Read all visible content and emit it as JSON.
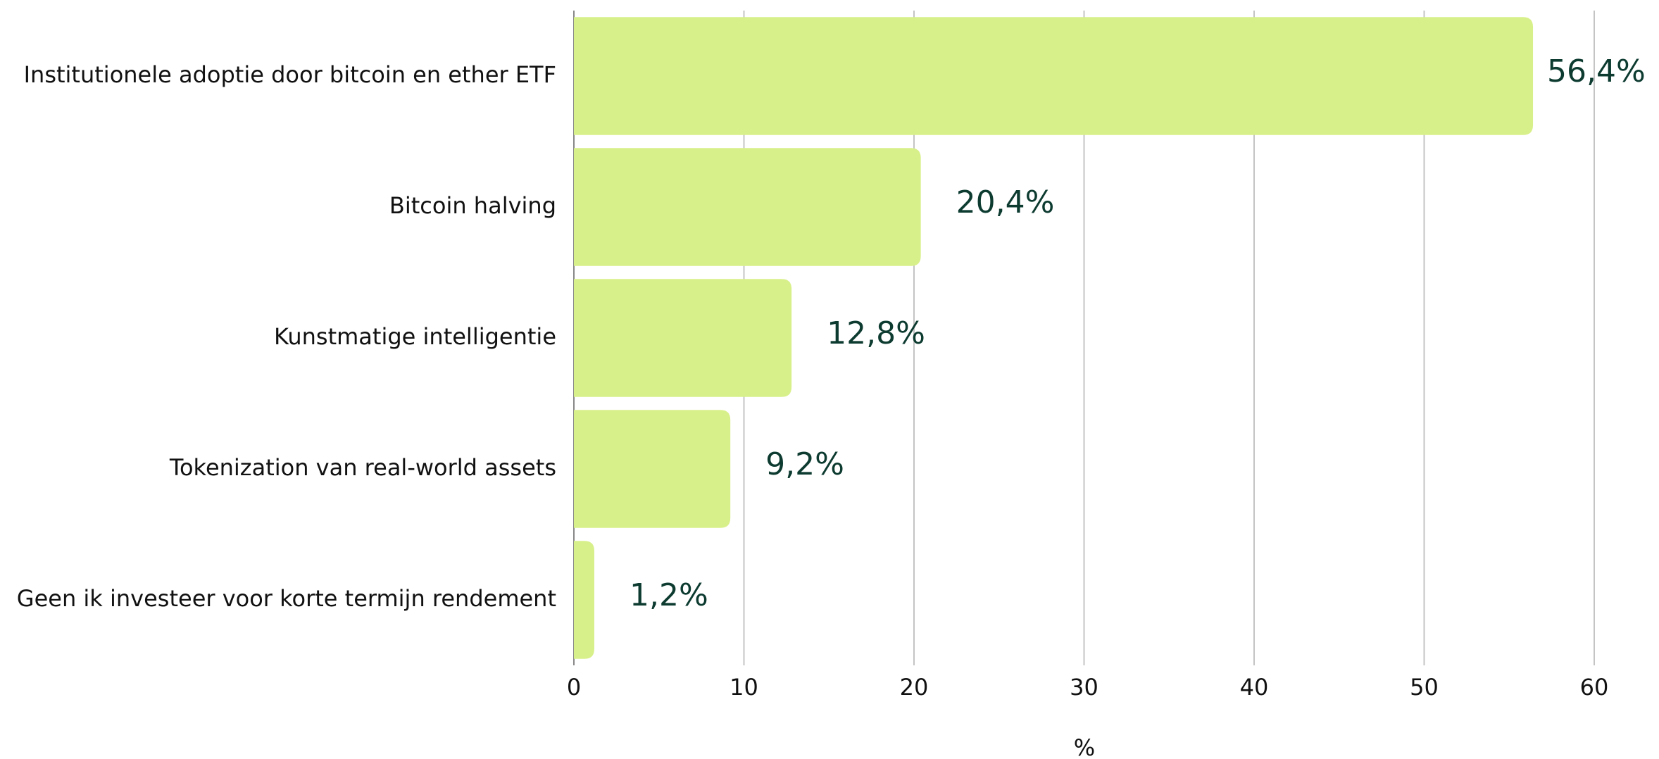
{
  "chart_data": {
    "type": "hbar",
    "categories": [
      "Institutionele adoptie door bitcoin en ether ETF",
      "Bitcoin halving",
      "Kunstmatige intelligentie",
      "Tokenization van real-world assets",
      "Geen ik investeer voor korte termijn rendement"
    ],
    "values": [
      56.4,
      20.4,
      12.8,
      9.2,
      1.2
    ],
    "value_labels": [
      "56,4%",
      "20,4%",
      "12,8%",
      "9,2%",
      "1,2%"
    ],
    "color": "#d8f08a",
    "xlim": [
      0,
      60
    ],
    "xticks": [
      0,
      10,
      20,
      30,
      40,
      50,
      60
    ],
    "xlabel": "%",
    "grid": true
  }
}
